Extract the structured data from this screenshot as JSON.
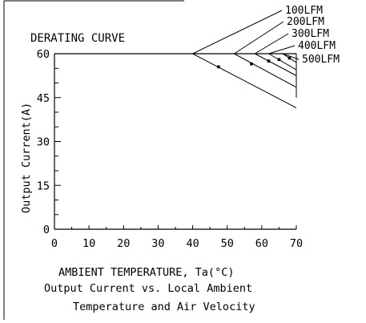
{
  "chart_data": {
    "type": "line",
    "title": "DERATING CURVE",
    "xlabel": "AMBIENT TEMPERATURE, Ta(°C)",
    "ylabel": "Output Current(A)",
    "xlim": [
      0,
      70
    ],
    "ylim": [
      0,
      60
    ],
    "x_ticks": [
      0,
      10,
      20,
      30,
      40,
      50,
      60,
      70
    ],
    "y_ticks": [
      0,
      15,
      30,
      45,
      60
    ],
    "grid": false,
    "caption_lines": [
      "Output Current vs. Local Ambient",
      "Temperature and Air Velocity"
    ],
    "series": [
      {
        "name": "100LFM",
        "x": [
          0,
          40,
          47.5,
          70
        ],
        "y": [
          60,
          60,
          55.5,
          41.5
        ],
        "marker": [
          47.5,
          55.5
        ]
      },
      {
        "name": "200LFM",
        "x": [
          0,
          52,
          57,
          70
        ],
        "y": [
          60,
          60,
          56.5,
          48.5
        ],
        "marker": [
          57,
          56.5
        ]
      },
      {
        "name": "300LFM",
        "x": [
          0,
          58,
          62,
          70
        ],
        "y": [
          60,
          60,
          57.5,
          52.5
        ],
        "marker": [
          62,
          57.5
        ]
      },
      {
        "name": "400LFM",
        "x": [
          0,
          62,
          65,
          70
        ],
        "y": [
          60,
          60,
          58,
          54.5
        ],
        "marker": [
          65,
          58
        ]
      },
      {
        "name": "500LFM",
        "x": [
          0,
          66,
          68,
          70
        ],
        "y": [
          60,
          60,
          58.5,
          57
        ],
        "marker": [
          68,
          58.5
        ]
      }
    ]
  }
}
